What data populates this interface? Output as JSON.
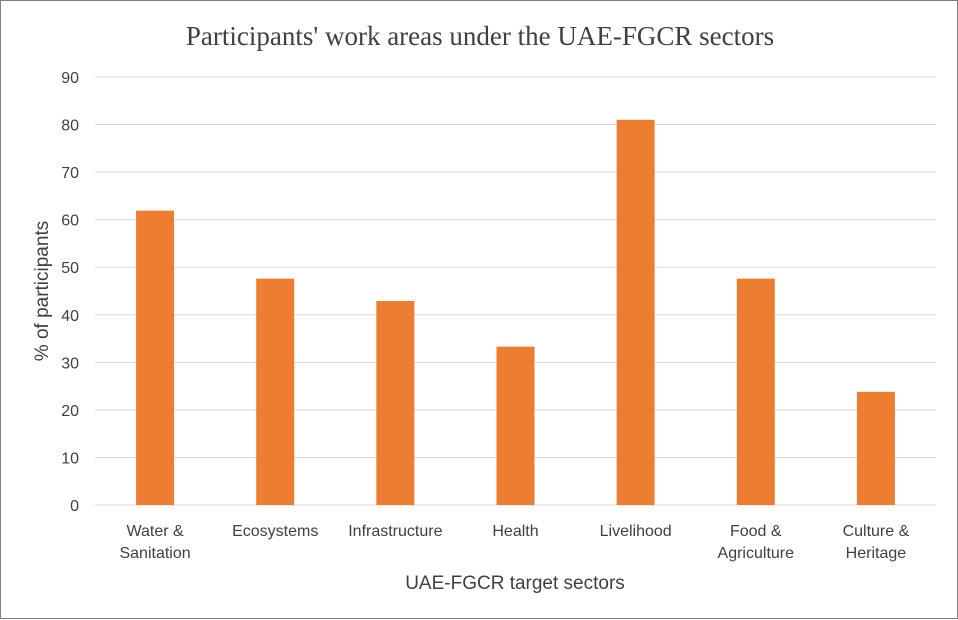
{
  "chart_data": {
    "type": "bar",
    "title": "Participants' work areas under the UAE-FGCR sectors",
    "xlabel": "UAE-FGCR target sectors",
    "ylabel": "% of participants",
    "categories": [
      [
        "Water &",
        "Sanitation"
      ],
      [
        "Ecosystems"
      ],
      [
        "Infrastructure"
      ],
      [
        "Health"
      ],
      [
        "Livelihood"
      ],
      [
        "Food &",
        "Agriculture"
      ],
      [
        "Culture &",
        "Heritage"
      ]
    ],
    "values": [
      61.9,
      47.6,
      42.9,
      33.3,
      81.0,
      47.6,
      23.8
    ],
    "ylim": [
      0,
      90
    ],
    "yticks": [
      0,
      10,
      20,
      30,
      40,
      50,
      60,
      70,
      80,
      90
    ],
    "grid": true,
    "legend": "none",
    "bar_color": "#ed7d31"
  }
}
